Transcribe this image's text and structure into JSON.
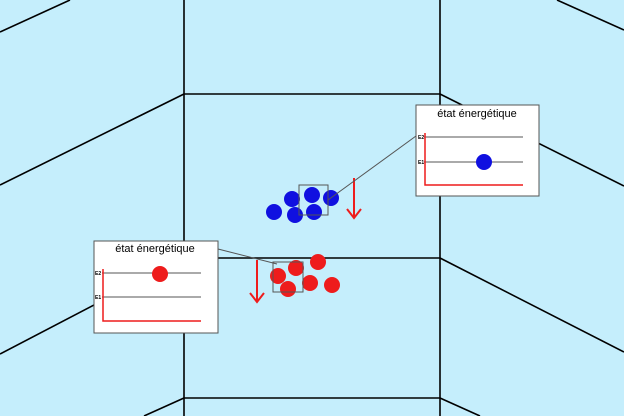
{
  "panels": [
    {
      "title": "état énergétique",
      "level_high": "E2",
      "level_low": "E1",
      "particle_on_level": "E1",
      "particle_color": "#1010e0"
    },
    {
      "title": "état énergétique",
      "level_high": "E2",
      "level_low": "E1",
      "particle_on_level": "E2",
      "particle_color": "#ee1c1c"
    }
  ],
  "clusters": [
    {
      "group": "blue",
      "color": "#1010e0",
      "count": 6,
      "motion": "down"
    },
    {
      "group": "red",
      "color": "#ee1c1c",
      "count": 7,
      "motion": "down"
    }
  ],
  "colors": {
    "background": "#c5eefc",
    "lines": "#000000",
    "arrow": "#ee1c1c",
    "axis": "#ee1c1c",
    "panel_bg": "#ffffff"
  }
}
